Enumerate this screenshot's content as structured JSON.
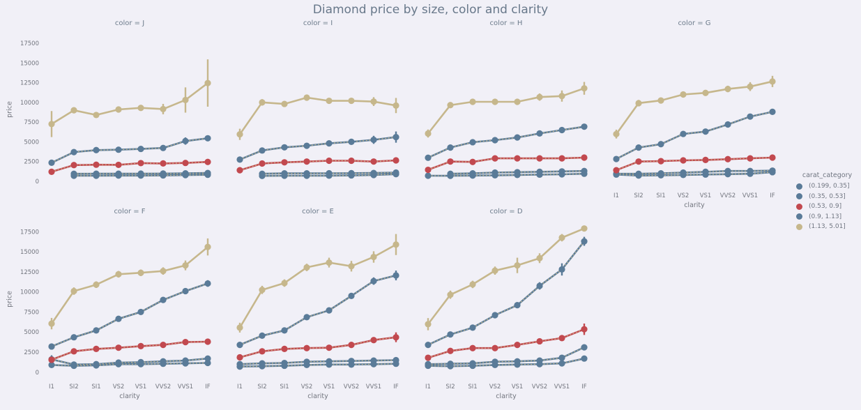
{
  "title": "Diamond price by size, color and clarity",
  "colors": {
    "background": "#f1f0f7",
    "blue": "#5a7b98",
    "red": "#c2494f",
    "tan": "#c6b78c",
    "tick_text": "#72757e",
    "title_text": "#68788a"
  },
  "chart_data": {
    "type": "line",
    "title": "Diamond price by size, color and clarity",
    "xlabel": "clarity",
    "ylabel": "price",
    "x_categories": [
      "I1",
      "SI2",
      "SI1",
      "VS2",
      "VS1",
      "VVS2",
      "VVS1",
      "IF"
    ],
    "yticks": [
      0,
      2500,
      5000,
      7500,
      10000,
      12500,
      15000,
      17500
    ],
    "ylim": [
      0,
      17500
    ],
    "grid": false,
    "legend_position": "right",
    "legend_title": "carat_category",
    "series_meta": [
      {
        "name": "(0.199, 0.35]",
        "color": "#5a7b98"
      },
      {
        "name": "(0.35, 0.53]",
        "color": "#5a7b98"
      },
      {
        "name": "(0.53, 0.9]",
        "color": "#c2494f"
      },
      {
        "name": "(0.9, 1.13]",
        "color": "#5a7b98"
      },
      {
        "name": "(1.13, 5.01]",
        "color": "#c6b78c"
      }
    ],
    "facets": [
      {
        "label": "color = J",
        "values": [
          [
            null,
            700,
            700,
            720,
            720,
            740,
            780,
            820
          ],
          [
            null,
            950,
            960,
            960,
            970,
            980,
            1000,
            1050
          ],
          [
            1200,
            2050,
            2100,
            2080,
            2300,
            2260,
            2320,
            2450
          ],
          [
            2350,
            3700,
            3950,
            4000,
            4100,
            4220,
            5100,
            5450
          ],
          [
            7250,
            9000,
            8400,
            9100,
            9300,
            9150,
            10300,
            12450
          ]
        ],
        "errors": [
          [
            0,
            60,
            60,
            60,
            60,
            60,
            80,
            100
          ],
          [
            0,
            60,
            60,
            60,
            60,
            60,
            80,
            100
          ],
          [
            150,
            90,
            90,
            90,
            90,
            90,
            110,
            160
          ],
          [
            220,
            160,
            150,
            150,
            160,
            210,
            460,
            310
          ],
          [
            1650,
            360,
            310,
            310,
            310,
            660,
            1600,
            3000
          ]
        ]
      },
      {
        "label": "color = I",
        "values": [
          [
            null,
            680,
            700,
            700,
            710,
            740,
            790,
            900
          ],
          [
            null,
            950,
            1000,
            1000,
            1010,
            1020,
            1050,
            1100
          ],
          [
            1400,
            2250,
            2400,
            2500,
            2600,
            2600,
            2500,
            2650
          ],
          [
            2750,
            3900,
            4300,
            4500,
            4800,
            5000,
            5250,
            5600
          ],
          [
            5950,
            10000,
            9800,
            10600,
            10200,
            10200,
            10100,
            9600
          ]
        ],
        "errors": [
          [
            0,
            60,
            60,
            60,
            60,
            60,
            80,
            110
          ],
          [
            0,
            60,
            60,
            60,
            60,
            60,
            80,
            110
          ],
          [
            160,
            90,
            90,
            90,
            90,
            110,
            130,
            210
          ],
          [
            210,
            160,
            150,
            150,
            160,
            260,
            510,
            710
          ],
          [
            710,
            410,
            310,
            360,
            310,
            360,
            560,
            960
          ]
        ]
      },
      {
        "label": "color = H",
        "values": [
          [
            700,
            690,
            720,
            760,
            800,
            840,
            880,
            950
          ],
          [
            null,
            950,
            1000,
            1100,
            1150,
            1200,
            1250,
            1300
          ],
          [
            1450,
            2500,
            2450,
            2900,
            2900,
            2900,
            2900,
            3000
          ],
          [
            2980,
            4270,
            4950,
            5210,
            5550,
            6060,
            6490,
            6920
          ],
          [
            6050,
            9650,
            10070,
            10070,
            10070,
            10670,
            10800,
            11780
          ]
        ],
        "errors": [
          [
            90,
            60,
            60,
            60,
            60,
            60,
            80,
            110
          ],
          [
            0,
            60,
            60,
            60,
            60,
            60,
            80,
            110
          ],
          [
            190,
            110,
            110,
            110,
            110,
            110,
            130,
            190
          ],
          [
            260,
            160,
            160,
            160,
            160,
            210,
            260,
            360
          ],
          [
            510,
            360,
            310,
            310,
            310,
            460,
            710,
            810
          ]
        ]
      },
      {
        "label": "color = G",
        "values": [
          [
            850,
            720,
            760,
            800,
            850,
            900,
            950,
            1150
          ],
          [
            950,
            950,
            1000,
            1100,
            1200,
            1300,
            1300,
            1350
          ],
          [
            1400,
            2500,
            2550,
            2650,
            2700,
            2800,
            2900,
            3000
          ],
          [
            2820,
            4270,
            4700,
            6000,
            6300,
            7200,
            8200,
            8800
          ],
          [
            5980,
            9900,
            10240,
            11000,
            11200,
            11700,
            12000,
            12650
          ]
        ],
        "errors": [
          [
            90,
            60,
            60,
            60,
            60,
            60,
            80,
            110
          ],
          [
            90,
            60,
            60,
            60,
            60,
            60,
            80,
            110
          ],
          [
            160,
            110,
            110,
            110,
            110,
            110,
            130,
            160
          ],
          [
            260,
            210,
            210,
            210,
            210,
            260,
            310,
            360
          ],
          [
            560,
            410,
            360,
            360,
            360,
            410,
            560,
            710
          ]
        ]
      },
      {
        "label": "color = F",
        "values": [
          [
            900,
            800,
            850,
            1000,
            1000,
            1050,
            1100,
            1150
          ],
          [
            1600,
            950,
            1000,
            1200,
            1250,
            1350,
            1450,
            1700
          ],
          [
            1550,
            2600,
            2900,
            3050,
            3250,
            3400,
            3750,
            3800
          ],
          [
            3200,
            4350,
            5200,
            6650,
            7500,
            9000,
            10100,
            11050
          ],
          [
            6050,
            10100,
            10900,
            12200,
            12380,
            12600,
            13300,
            15600
          ]
        ],
        "errors": [
          [
            110,
            60,
            60,
            60,
            60,
            60,
            80,
            110
          ],
          [
            510,
            60,
            60,
            60,
            60,
            60,
            80,
            130
          ],
          [
            210,
            110,
            110,
            110,
            110,
            130,
            210,
            260
          ],
          [
            260,
            210,
            210,
            210,
            260,
            310,
            360,
            410
          ],
          [
            710,
            460,
            410,
            410,
            410,
            460,
            610,
            1060
          ]
        ]
      },
      {
        "label": "color = E",
        "values": [
          [
            700,
            750,
            800,
            900,
            950,
            950,
            1000,
            1050
          ],
          [
            1000,
            1100,
            1150,
            1300,
            1350,
            1400,
            1450,
            1500
          ],
          [
            1850,
            2600,
            2900,
            3000,
            3050,
            3400,
            4000,
            4350
          ],
          [
            3400,
            4550,
            5200,
            6850,
            7700,
            9500,
            11350,
            12050
          ],
          [
            5550,
            10250,
            11100,
            13050,
            13650,
            13200,
            14350,
            15900
          ]
        ],
        "errors": [
          [
            90,
            60,
            60,
            60,
            60,
            60,
            80,
            110
          ],
          [
            110,
            60,
            60,
            60,
            60,
            60,
            80,
            110
          ],
          [
            210,
            110,
            110,
            110,
            130,
            160,
            260,
            610
          ],
          [
            260,
            210,
            210,
            260,
            260,
            360,
            460,
            610
          ],
          [
            610,
            510,
            460,
            460,
            610,
            660,
            710,
            1310
          ]
        ]
      },
      {
        "label": "color = D",
        "values": [
          [
            800,
            750,
            800,
            900,
            950,
            1000,
            1100,
            1700
          ],
          [
            1000,
            1050,
            1100,
            1300,
            1350,
            1450,
            1800,
            3100
          ],
          [
            1800,
            2650,
            3000,
            3000,
            3400,
            3850,
            4250,
            5350
          ],
          [
            3400,
            4700,
            5550,
            7100,
            8350,
            10750,
            12800,
            16300
          ],
          [
            5980,
            9650,
            10930,
            12650,
            13300,
            14200,
            16750,
            17900
          ]
        ],
        "errors": [
          [
            110,
            60,
            60,
            60,
            60,
            60,
            80,
            160
          ],
          [
            110,
            60,
            60,
            60,
            60,
            80,
            160,
            310
          ],
          [
            260,
            130,
            130,
            130,
            160,
            210,
            310,
            710
          ],
          [
            310,
            260,
            260,
            260,
            310,
            460,
            760,
            560
          ],
          [
            760,
            510,
            460,
            510,
            960,
            610,
            460,
            360
          ]
        ]
      }
    ]
  }
}
